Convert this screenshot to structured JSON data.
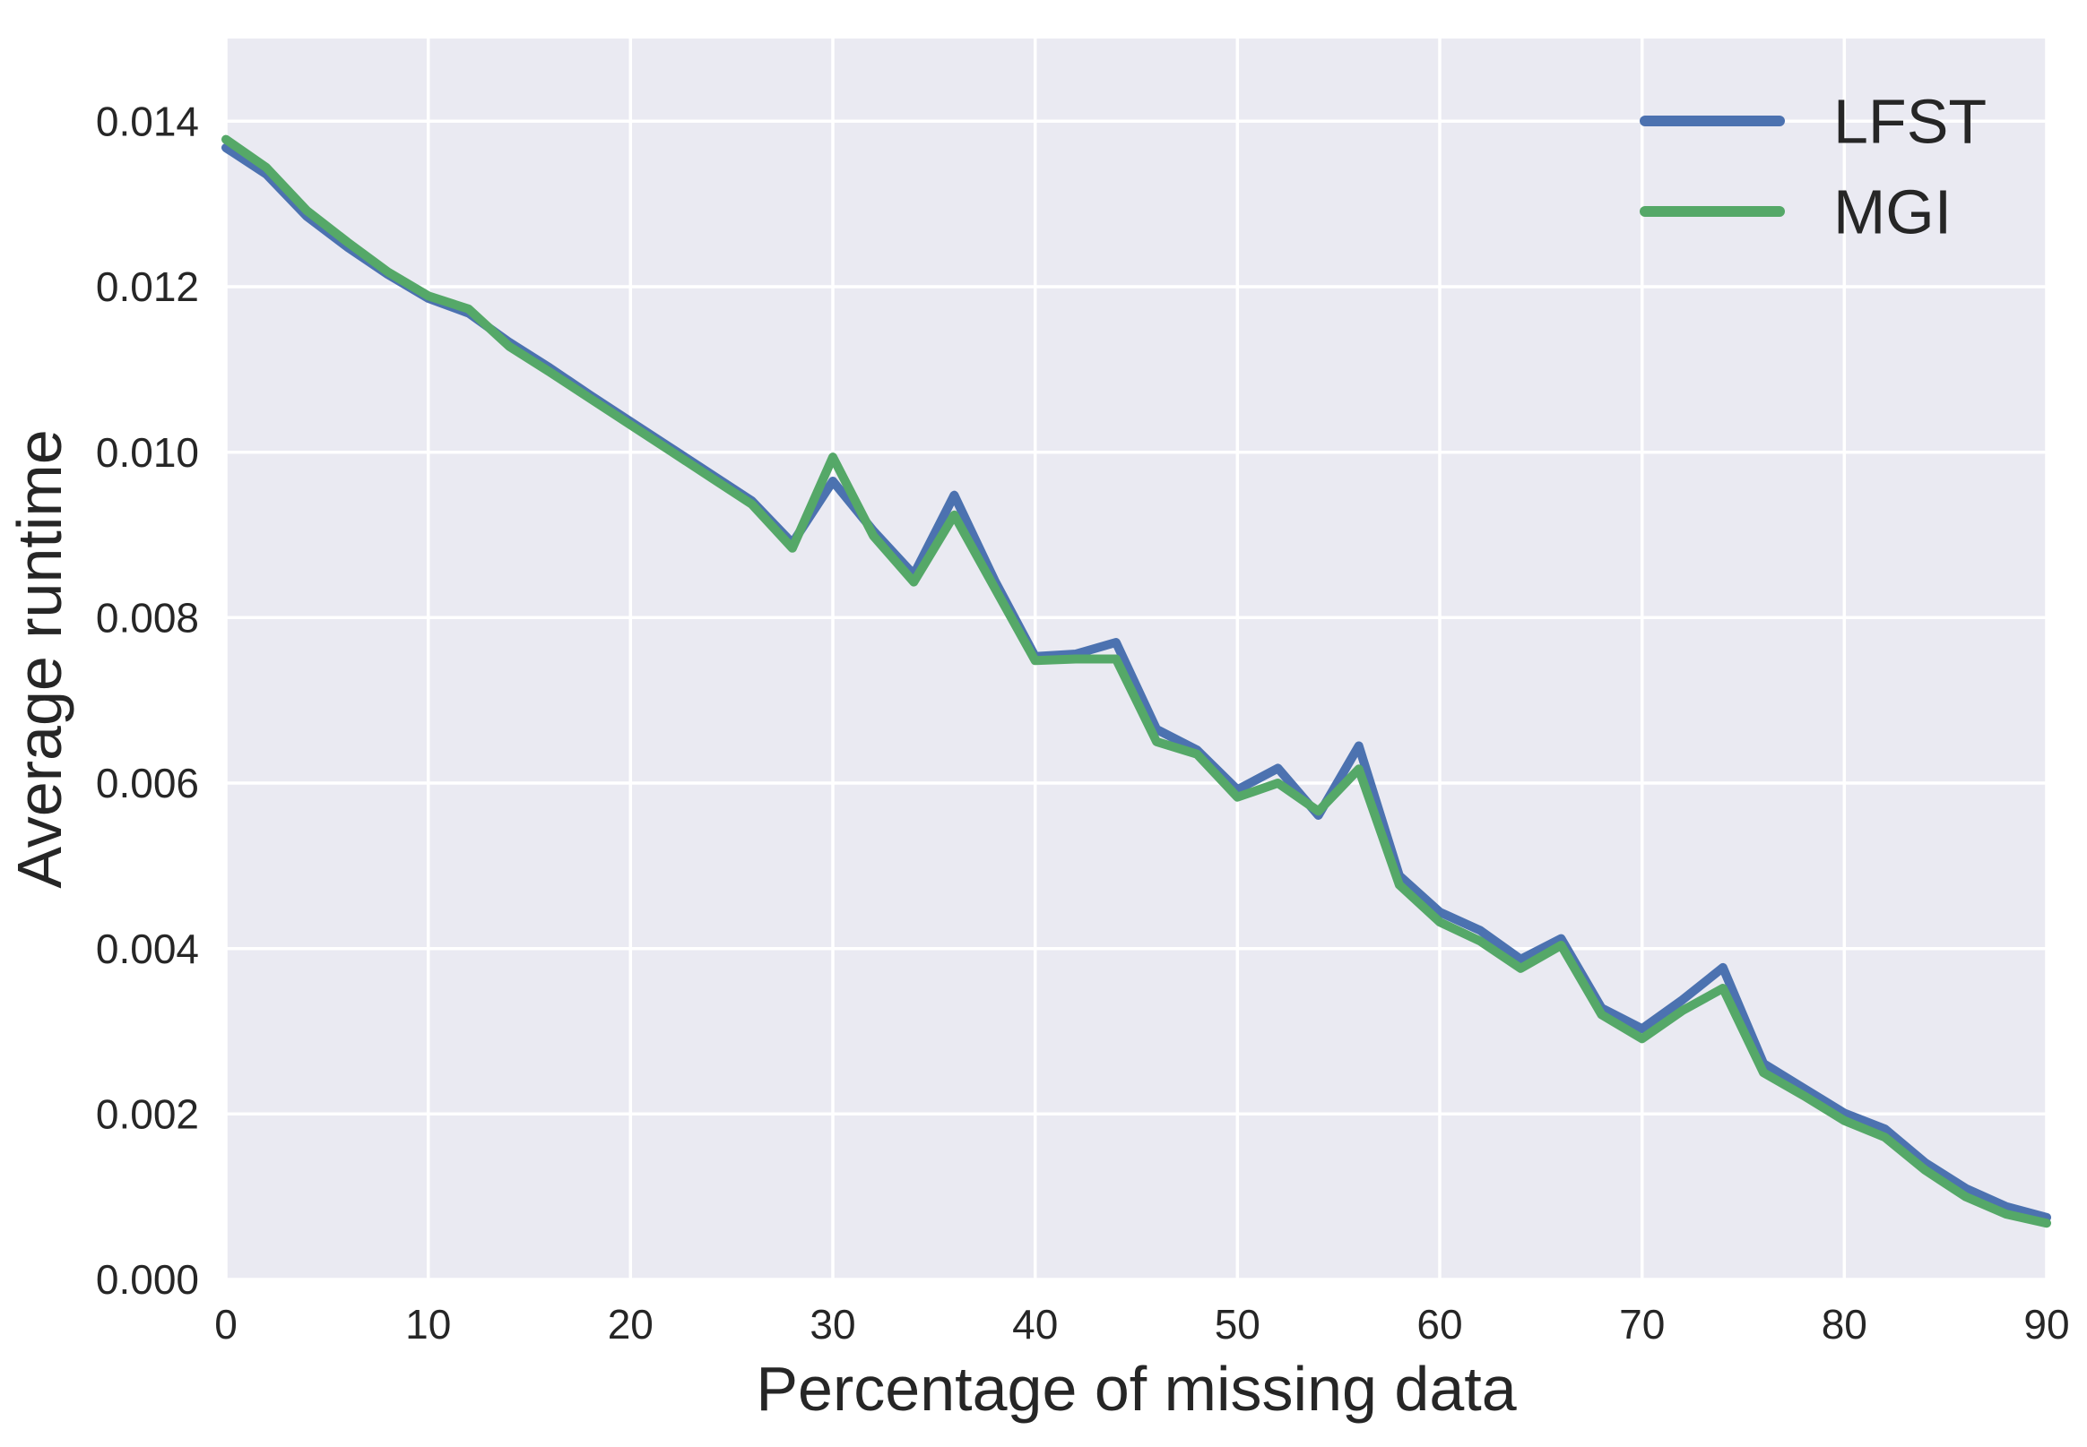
{
  "chart_data": {
    "type": "line",
    "title": "",
    "xlabel": "Percentage of missing data",
    "ylabel": "Average runtime",
    "xlim": [
      0,
      90
    ],
    "ylim": [
      0,
      0.015
    ],
    "grid": true,
    "legend_position": "upper right",
    "background": "#eaeaf2",
    "gridline_color": "#ffffff",
    "text_color": "#262626",
    "x_ticks": [
      0,
      10,
      20,
      30,
      40,
      50,
      60,
      70,
      80,
      90
    ],
    "x_tick_labels": [
      "0",
      "10",
      "20",
      "30",
      "40",
      "50",
      "60",
      "70",
      "80",
      "90"
    ],
    "y_ticks": [
      0,
      0.002,
      0.004,
      0.006,
      0.008,
      0.01,
      0.012,
      0.014
    ],
    "y_tick_labels": [
      "0.000",
      "0.002",
      "0.004",
      "0.006",
      "0.008",
      "0.010",
      "0.012",
      "0.014"
    ],
    "x": [
      0,
      2,
      4,
      6,
      8,
      10,
      12,
      14,
      16,
      18,
      20,
      22,
      24,
      26,
      28,
      30,
      32,
      34,
      36,
      38,
      40,
      42,
      44,
      46,
      48,
      50,
      52,
      54,
      56,
      58,
      60,
      62,
      64,
      66,
      68,
      70,
      72,
      74,
      76,
      78,
      80,
      82,
      84,
      86,
      88,
      90
    ],
    "series": [
      {
        "name": "LFST",
        "color": "#4c72b0",
        "values": [
          0.01368,
          0.01336,
          0.01285,
          0.01248,
          0.01215,
          0.01186,
          0.01168,
          0.01133,
          0.01102,
          0.01069,
          0.01037,
          0.01005,
          0.00973,
          0.00941,
          0.0089,
          0.00965,
          0.00905,
          0.00852,
          0.00948,
          0.00845,
          0.00753,
          0.00756,
          0.0077,
          0.00665,
          0.0064,
          0.00592,
          0.00618,
          0.00561,
          0.00645,
          0.00488,
          0.00444,
          0.00422,
          0.00387,
          0.00412,
          0.00328,
          0.00303,
          0.00338,
          0.00377,
          0.00261,
          0.00231,
          0.00201,
          0.00182,
          0.00141,
          0.0011,
          0.00088,
          0.00075
        ]
      },
      {
        "name": "MGI",
        "color": "#55a868",
        "values": [
          0.01378,
          0.01344,
          0.01292,
          0.01254,
          0.01218,
          0.01189,
          0.01173,
          0.01128,
          0.01097,
          0.01065,
          0.01033,
          0.01001,
          0.00969,
          0.00937,
          0.00884,
          0.00994,
          0.00899,
          0.00843,
          0.00924,
          0.00836,
          0.00748,
          0.0075,
          0.0075,
          0.0065,
          0.00635,
          0.00583,
          0.006,
          0.00566,
          0.00617,
          0.00477,
          0.00432,
          0.00409,
          0.00376,
          0.00404,
          0.0032,
          0.00291,
          0.00325,
          0.00352,
          0.0025,
          0.00222,
          0.00192,
          0.00172,
          0.00132,
          0.001,
          0.00079,
          0.00068
        ]
      }
    ]
  }
}
